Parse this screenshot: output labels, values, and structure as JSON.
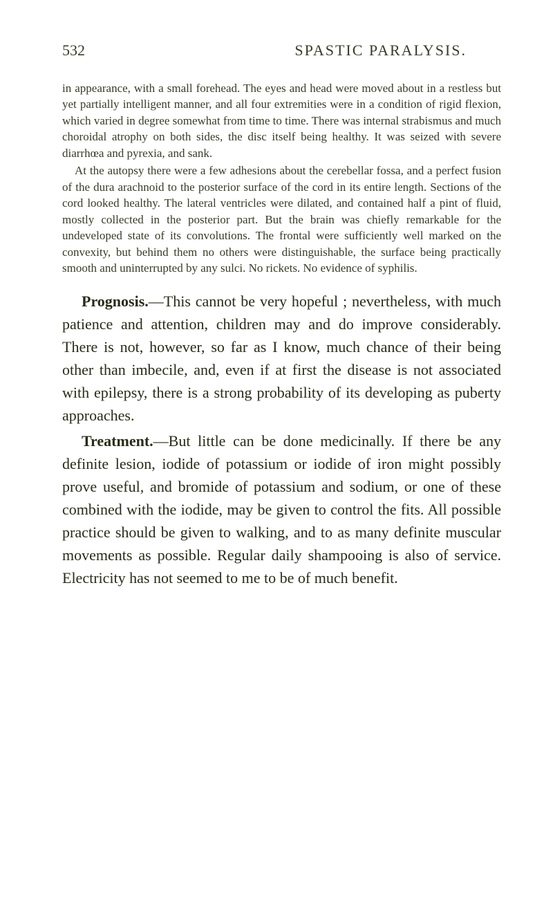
{
  "header": {
    "page_number": "532",
    "title": "SPASTIC PARALYSIS."
  },
  "case": {
    "para1": "in appearance, with a small forehead. The eyes and head were moved about in a restless but yet partially intelligent manner, and all four extremities were in a condition of rigid flexion, which varied in degree somewhat from time to time. There was internal strabismus and much choroidal atrophy on both sides, the disc itself being healthy. It was seized with severe diarrhœa and pyrexia, and sank.",
    "para2": "At the autopsy there were a few adhesions about the cerebellar fossa, and a perfect fusion of the dura arachnoid to the posterior surface of the cord in its entire length. Sections of the cord looked healthy. The lateral ventricles were dilated, and contained half a pint of fluid, mostly collected in the posterior part. But the brain was chiefly remarkable for the undeveloped state of its convolutions. The frontal were sufficiently well marked on the convexity, but behind them no others were distinguishable, the surface being practically smooth and uninterrupted by any sulci. No rickets. No evidence of syphilis."
  },
  "main": {
    "prognosis": {
      "label": "Prognosis.",
      "text": "—This cannot be very hopeful ; nevertheless, with much patience and attention, children may and do improve considerably. There is not, however, so far as I know, much chance of their being other than imbecile, and, even if at first the disease is not associated with epilepsy, there is a strong probability of its developing as puberty approaches."
    },
    "treatment": {
      "label": "Treatment.",
      "text": "—But little can be done medicinally. If there be any definite lesion, iodide of potassium or iodide of iron might possibly prove useful, and bromide of potassium and sodium, or one of these combined with the iodide, may be given to control the fits. All possible practice should be given to walking, and to as many definite muscular movements as possible. Regular daily shampooing is also of service. Electricity has not seemed to me to be of much benefit."
    }
  }
}
